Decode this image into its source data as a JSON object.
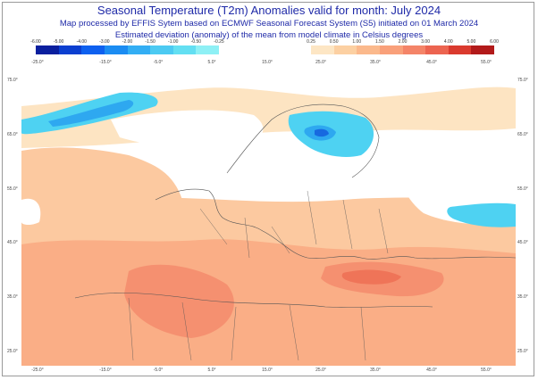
{
  "header": {
    "title": "Seasonal Temperature (T2m) Anomalies valid for month: July 2024",
    "subtitle1": "Map processed by EFFIS Sytem based on ECMWF Seasonal Forecast System (S5) initiated on 01 March 2024",
    "subtitle2": "Estimated deviation (anomaly) of the mean from model climate in Celsius degrees"
  },
  "legend": {
    "negative": {
      "labels": [
        "-6.00",
        "-5.00",
        "-4.00",
        "-3.00",
        "-2.00",
        "-1.50",
        "-1.00",
        "-0.50",
        "-0.25"
      ],
      "colors": [
        "#0a1f9e",
        "#0b3fd0",
        "#0d60ef",
        "#1b8cf2",
        "#33aef4",
        "#4ccaf2",
        "#63dff2",
        "#8ef0f5"
      ]
    },
    "positive": {
      "labels": [
        "0.25",
        "0.50",
        "1.00",
        "1.50",
        "2.00",
        "3.00",
        "4.00",
        "5.00",
        "6.00"
      ],
      "colors": [
        "#fde6c4",
        "#fcd0a2",
        "#fbb98c",
        "#f9a07a",
        "#f48468",
        "#ec6450",
        "#da3a2e",
        "#b21a1a"
      ]
    }
  },
  "axes": {
    "longitude_labels": [
      "-25.0°",
      "-15.0°",
      "-5.0°",
      "5.0°",
      "15.0°",
      "25.0°",
      "35.0°",
      "45.0°",
      "55.0°"
    ],
    "latitude_labels": [
      "75.0°",
      "65.0°",
      "55.0°",
      "45.0°",
      "35.0°",
      "25.0°"
    ]
  },
  "map_colors": {
    "ocean": "#ffffff",
    "neutral": "#ffffff",
    "warm_light": "#fde4c2",
    "warm": "#fcc9a0",
    "warm_mid": "#faae86",
    "warm_strong": "#f59070",
    "warm_hot": "#ef7458",
    "cool_light": "#8ef0f5",
    "cool": "#4ed2f2",
    "cool_mid": "#2ea8f0",
    "cool_strong": "#1769e0",
    "cool_deep": "#0b3fd0",
    "border_line": "#555555"
  }
}
